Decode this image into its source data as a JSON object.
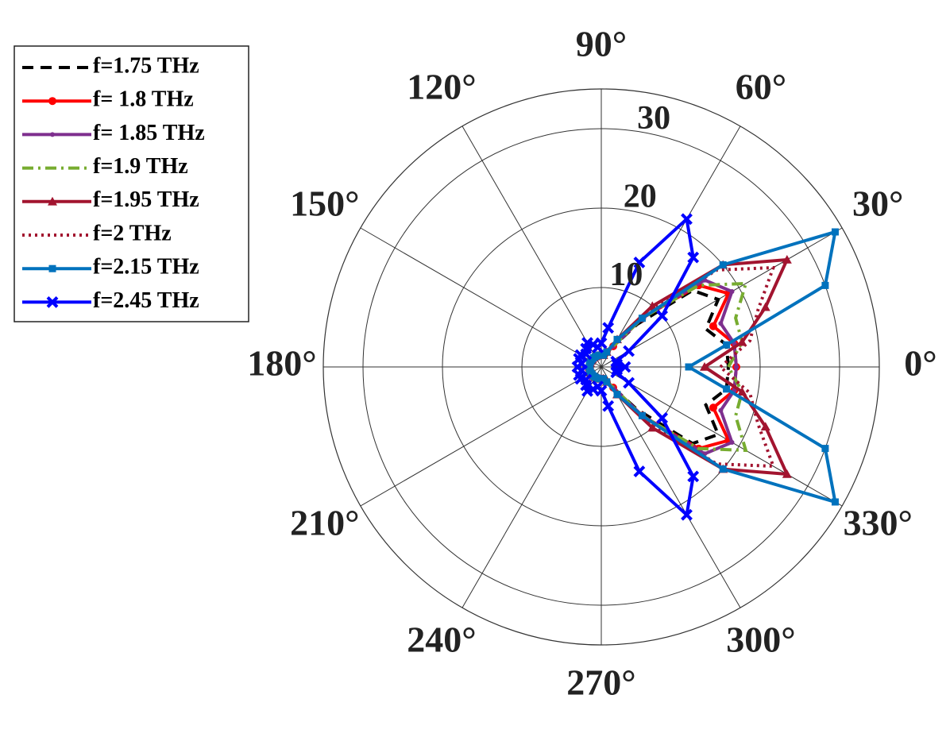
{
  "chart_data": {
    "type": "polar",
    "theta": [
      0,
      10,
      20,
      30,
      40,
      50,
      60,
      70,
      80,
      90,
      100,
      110,
      120,
      130,
      140,
      150,
      160,
      170,
      180,
      190,
      200,
      210,
      220,
      230,
      240,
      250,
      260,
      270,
      280,
      290,
      300,
      310,
      320,
      330,
      340,
      350
    ],
    "rlim": [
      0,
      35
    ],
    "rticks": [
      10,
      20,
      30
    ],
    "thetaticks": [
      {
        "value": 0,
        "label": "0°"
      },
      {
        "value": 30,
        "label": "30°"
      },
      {
        "value": 60,
        "label": "60°"
      },
      {
        "value": 90,
        "label": "90°"
      },
      {
        "value": 120,
        "label": "120°"
      },
      {
        "value": 150,
        "label": "150°"
      },
      {
        "value": 180,
        "label": "180°"
      },
      {
        "value": 210,
        "label": "210°"
      },
      {
        "value": 240,
        "label": "240°"
      },
      {
        "value": 270,
        "label": "270°"
      },
      {
        "value": 300,
        "label": "300°"
      },
      {
        "value": 330,
        "label": "330°"
      }
    ],
    "grid": true,
    "legend": "upper left",
    "series": [
      {
        "name": "f=1.75 THz",
        "color": "#000000",
        "dash": "dashed",
        "marker": "none",
        "values": [
          16,
          16,
          14,
          17,
          15,
          7,
          3,
          2,
          1.5,
          1.5,
          1.5,
          1.5,
          1.5,
          1.5,
          1.5,
          1.5,
          1.5,
          1.5,
          1.5,
          1.5,
          1.5,
          1.5,
          1.5,
          1.5,
          1.5,
          1.5,
          1.5,
          1.5,
          1.5,
          2,
          3,
          7,
          15,
          17,
          14,
          16
        ]
      },
      {
        "name": "f= 1.8 THz",
        "color": "#ff0000",
        "dash": "solid",
        "marker": "circle",
        "values": [
          17,
          17,
          15,
          18.5,
          16,
          8,
          3,
          2,
          1.5,
          1.5,
          1.5,
          1.5,
          1.5,
          1.5,
          1.5,
          1.5,
          1.5,
          1.5,
          1.5,
          1.5,
          1.5,
          1.5,
          1.5,
          1.5,
          1.5,
          1.5,
          1.5,
          1.5,
          1.5,
          2,
          3,
          8,
          16,
          18.5,
          15,
          17
        ]
      },
      {
        "name": "f= 1.85 THz",
        "color": "#7e2f8e",
        "dash": "solid",
        "marker": "dot",
        "values": [
          17,
          17,
          16,
          19,
          17,
          8,
          3,
          2,
          1.5,
          1.5,
          1.5,
          1.5,
          1.5,
          1.5,
          1.5,
          1.5,
          1.5,
          1.5,
          1.5,
          1.5,
          1.5,
          1.5,
          1.5,
          1.5,
          1.5,
          1.5,
          1.5,
          1.5,
          1.5,
          2,
          3,
          8,
          17,
          19,
          16,
          17
        ]
      },
      {
        "name": "f=1.9 THz",
        "color": "#77ac30",
        "dash": "dashdot",
        "marker": "none",
        "values": [
          16,
          18,
          18,
          21,
          16,
          8,
          3,
          2,
          1.5,
          1.5,
          1.5,
          1.5,
          1.5,
          1.5,
          1.5,
          1.5,
          1.5,
          1.5,
          1.5,
          1.5,
          1.5,
          1.5,
          1.5,
          1.5,
          1.5,
          1.5,
          1.5,
          1.5,
          1.5,
          2,
          3,
          8,
          16,
          21,
          18,
          18
        ]
      },
      {
        "name": "f=1.95 THz",
        "color": "#a2142f",
        "dash": "solid",
        "marker": "triangle",
        "values": [
          13,
          18,
          22,
          27,
          20,
          10,
          4,
          2,
          1.5,
          1.5,
          1.5,
          1.5,
          1.5,
          1.5,
          1.5,
          1.5,
          1.5,
          1.5,
          1.5,
          1.5,
          1.5,
          1.5,
          1.5,
          1.5,
          1.5,
          1.5,
          1.5,
          1.5,
          1.5,
          2,
          4,
          10,
          20,
          27,
          22,
          18
        ]
      },
      {
        "name": "f=2 THz",
        "color": "#a2142f",
        "dash": "dotted",
        "marker": "none",
        "values": [
          15,
          19,
          21,
          25,
          19,
          9,
          4,
          2,
          1.5,
          1.5,
          1.5,
          1.5,
          1.5,
          1.5,
          1.5,
          1.5,
          1.5,
          1.5,
          1.5,
          1.5,
          1.5,
          1.5,
          1.5,
          1.5,
          1.5,
          1.5,
          1.5,
          1.5,
          1.5,
          2,
          4,
          9,
          19,
          25,
          21,
          19
        ]
      },
      {
        "name": "f=2.15 THz",
        "color": "#0072bd",
        "dash": "solid",
        "marker": "square",
        "values": [
          11,
          16,
          30,
          34,
          20,
          8,
          4,
          2,
          1.5,
          1.5,
          1.5,
          1.5,
          1.5,
          1.5,
          1.5,
          1.5,
          1.5,
          1.5,
          1.5,
          1.5,
          1.5,
          1.5,
          1.5,
          1.5,
          1.5,
          1.5,
          1.5,
          1.5,
          1.5,
          2,
          4,
          8,
          20,
          34,
          30,
          16
        ]
      },
      {
        "name": "f=2.45 THz",
        "color": "#0000ff",
        "dash": "solid",
        "marker": "x",
        "values": [
          3,
          2,
          2,
          4,
          10,
          18,
          21.5,
          14,
          5,
          3,
          2.5,
          3,
          3.5,
          3,
          2.5,
          3,
          3,
          2.5,
          3,
          2.5,
          3,
          3,
          2.5,
          3,
          3.5,
          3,
          2.5,
          3,
          5,
          14,
          21.5,
          18,
          10,
          4,
          2,
          2
        ]
      }
    ]
  }
}
